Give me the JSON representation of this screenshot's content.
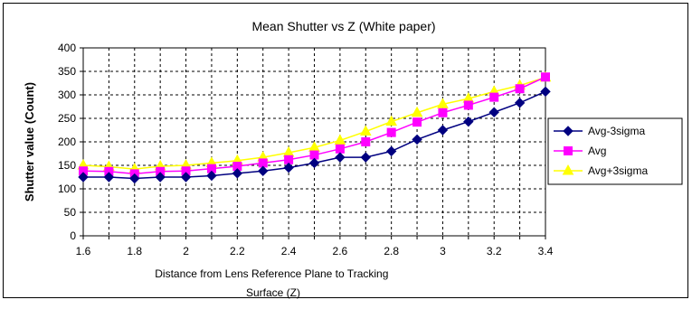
{
  "chart_data": {
    "type": "line",
    "title": "Mean Shutter vs Z (White paper)",
    "xlabel": "Distance from Lens Reference Plane to Tracking Surface (Z)",
    "xlabel_lines": [
      "Distance from Lens Reference Plane to Tracking",
      "Surface (Z)"
    ],
    "ylabel": "Shutter value (Count)",
    "xlim": [
      1.6,
      3.4
    ],
    "ylim": [
      0,
      400
    ],
    "x_ticks": [
      1.6,
      1.8,
      2,
      2.2,
      2.4,
      2.6,
      2.8,
      3,
      3.2,
      3.4
    ],
    "x_tick_labels": [
      "1.6",
      "1.8",
      "2",
      "2.2",
      "2.4",
      "2.6",
      "2.8",
      "3",
      "3.2",
      "3.4"
    ],
    "y_ticks": [
      0,
      50,
      100,
      150,
      200,
      250,
      300,
      350,
      400
    ],
    "y_tick_labels": [
      "0",
      "50",
      "100",
      "150",
      "200",
      "250",
      "300",
      "350",
      "400"
    ],
    "grid": true,
    "legend_position": "right",
    "x": [
      1.6,
      1.7,
      1.8,
      1.9,
      2.0,
      2.1,
      2.2,
      2.3,
      2.4,
      2.5,
      2.6,
      2.7,
      2.8,
      2.9,
      3.0,
      3.1,
      3.2,
      3.3,
      3.4
    ],
    "series": [
      {
        "name": "Avg-3sigma",
        "color": "#000080",
        "marker": "diamond",
        "values": [
          125,
          125,
          122,
          125,
          125,
          128,
          133,
          138,
          145,
          155,
          167,
          167,
          180,
          205,
          225,
          243,
          263,
          283,
          307
        ]
      },
      {
        "name": "Avg",
        "color": "#ff00ff",
        "marker": "square",
        "values": [
          138,
          137,
          132,
          137,
          138,
          143,
          148,
          155,
          162,
          172,
          185,
          200,
          220,
          242,
          262,
          278,
          295,
          313,
          338
        ]
      },
      {
        "name": "Avg+3sigma",
        "color": "#ffff00",
        "marker": "triangle",
        "values": [
          150,
          147,
          142,
          148,
          150,
          155,
          160,
          167,
          177,
          188,
          203,
          222,
          243,
          262,
          280,
          292,
          307,
          320,
          337
        ]
      }
    ]
  }
}
